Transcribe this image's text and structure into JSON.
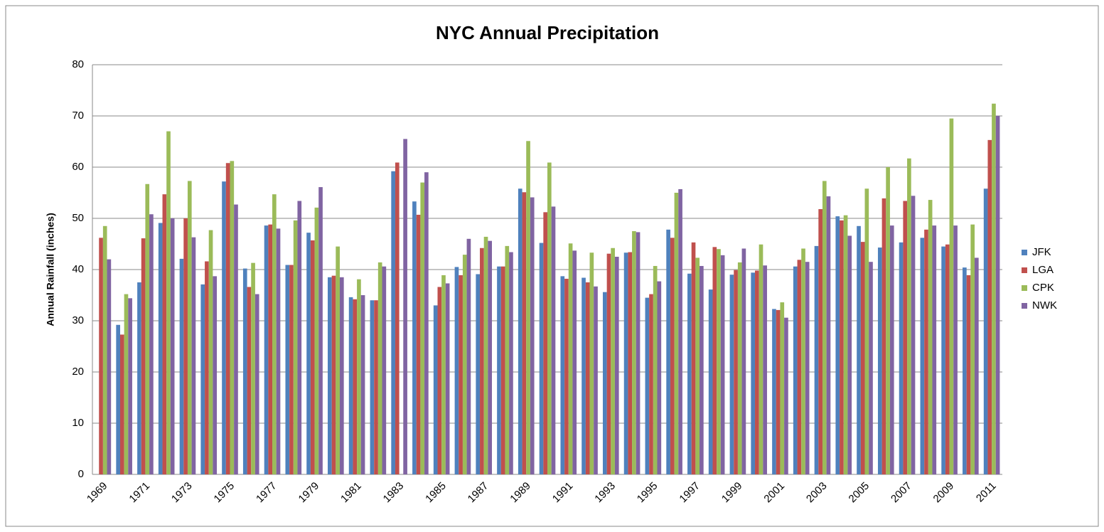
{
  "chart_data": {
    "type": "bar",
    "title": "NYC Annual Precipitation",
    "y_label": "Annual Rainfall (inches)",
    "categories": [
      "1969",
      null,
      "1971",
      null,
      "1973",
      null,
      "1975",
      null,
      "1977",
      null,
      "1979",
      null,
      "1981",
      null,
      "1983",
      null,
      "1985",
      null,
      "1987",
      null,
      "1989",
      null,
      "1991",
      null,
      "1993",
      null,
      "1995",
      null,
      "1997",
      null,
      "1999",
      null,
      "2001",
      null,
      "2003",
      null,
      "2005",
      null,
      "2007",
      null,
      "2009",
      null,
      "2011"
    ],
    "series": [
      {
        "name": "JFK",
        "color": "#4f81bd",
        "values": [
          null,
          29.2,
          37.5,
          49.1,
          42.1,
          37.1,
          57.2,
          40.2,
          48.6,
          40.9,
          47.2,
          38.5,
          34.6,
          34.0,
          59.2,
          53.3,
          33.0,
          40.5,
          39.1,
          40.6,
          55.8,
          45.2,
          38.7,
          38.4,
          35.6,
          43.3,
          34.5,
          47.8,
          39.2,
          36.1,
          39.0,
          39.4,
          32.3,
          40.6,
          44.6,
          50.4,
          48.5,
          44.3,
          45.3,
          46.2,
          44.5,
          40.4,
          55.8
        ]
      },
      {
        "name": "LGA",
        "color": "#c0504d",
        "values": [
          46.2,
          27.3,
          46.1,
          54.7,
          50.0,
          41.6,
          60.8,
          36.6,
          48.8,
          40.9,
          45.7,
          38.8,
          34.2,
          34.0,
          60.9,
          50.7,
          36.6,
          38.9,
          44.2,
          40.6,
          55.1,
          51.2,
          38.2,
          37.5,
          43.1,
          43.4,
          35.2,
          46.2,
          45.3,
          44.4,
          39.9,
          39.8,
          32.1,
          41.9,
          51.8,
          49.6,
          45.4,
          53.9,
          53.4,
          47.8,
          44.9,
          38.9,
          65.3
        ]
      },
      {
        "name": "CPK",
        "color": "#9bbb59",
        "values": [
          48.5,
          35.2,
          56.7,
          67.0,
          57.3,
          47.7,
          61.2,
          41.3,
          54.7,
          49.6,
          52.1,
          44.5,
          38.1,
          41.4,
          null,
          57.0,
          38.9,
          42.9,
          46.4,
          44.6,
          65.1,
          60.9,
          45.1,
          43.3,
          44.2,
          47.5,
          40.7,
          55.0,
          42.3,
          44.0,
          41.4,
          44.9,
          33.6,
          44.1,
          57.3,
          50.6,
          55.8,
          60.0,
          61.7,
          53.6,
          69.5,
          48.8,
          72.4
        ]
      },
      {
        "name": "NWK",
        "color": "#8064a2",
        "values": [
          42.0,
          34.4,
          50.8,
          50.0,
          46.3,
          38.7,
          52.7,
          35.2,
          48.0,
          53.4,
          56.1,
          38.5,
          35.0,
          40.6,
          65.5,
          59.0,
          37.3,
          46.0,
          45.6,
          43.4,
          54.1,
          52.3,
          43.7,
          36.7,
          42.5,
          47.3,
          37.7,
          55.7,
          40.7,
          42.8,
          44.1,
          40.8,
          30.6,
          41.5,
          54.3,
          46.6,
          41.5,
          48.6,
          54.4,
          48.6,
          48.6,
          42.3,
          70.0
        ]
      }
    ],
    "ylim": [
      0,
      80
    ],
    "yticks": [
      0,
      10,
      20,
      30,
      40,
      50,
      60,
      70,
      80
    ],
    "grid": true,
    "legend": "right"
  }
}
